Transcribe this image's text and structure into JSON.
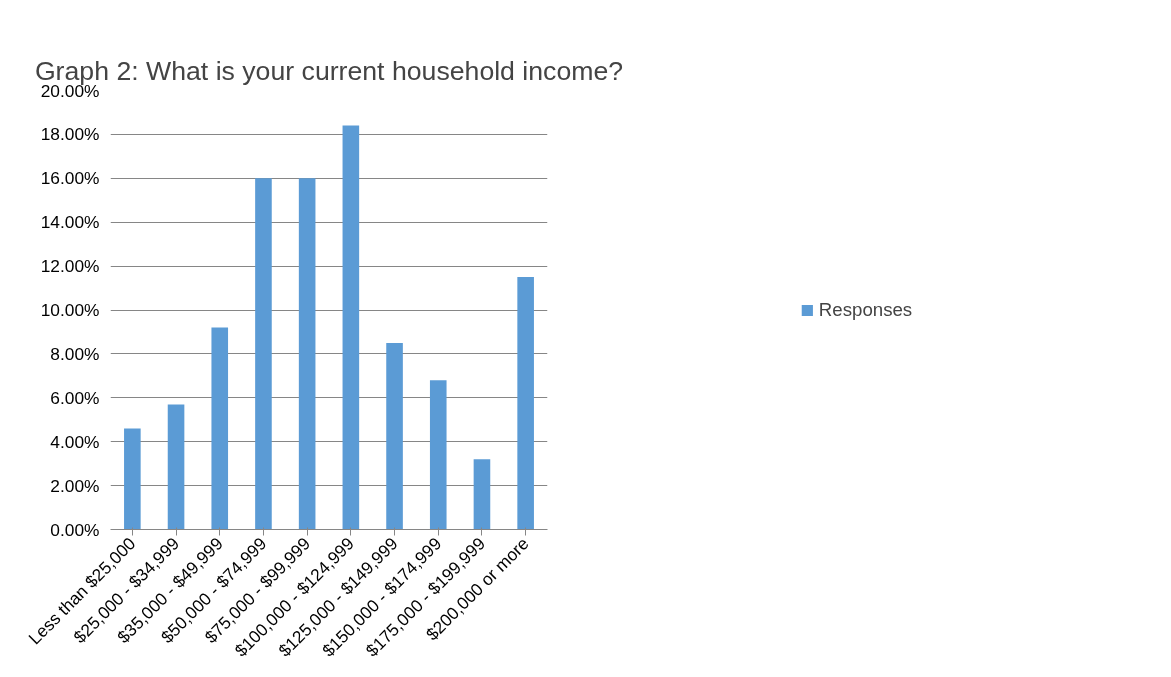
{
  "chart_data": {
    "type": "bar",
    "title": "Graph 2: What is your current household income?",
    "categories": [
      "Less than $25,000",
      "$25,000 - $34,999",
      "$35,000 - $49,999",
      "$50,000 - $74,999",
      "$75,000 - $99,999",
      "$100,000 - $124,999",
      "$125,000 - $149,999",
      "$150,000 - $174,999",
      "$175,000 - $199,999",
      "$200,000 or more"
    ],
    "series": [
      {
        "name": "Responses",
        "color": "#5b9bd5",
        "values": [
          4.6,
          5.7,
          9.2,
          16.0,
          16.0,
          18.4,
          8.5,
          6.8,
          3.2,
          11.5
        ]
      }
    ],
    "ylim": [
      0,
      20
    ],
    "yticks": [
      {
        "value": 0,
        "label": "0.00%"
      },
      {
        "value": 2,
        "label": "2.00%"
      },
      {
        "value": 4,
        "label": "4.00%"
      },
      {
        "value": 6,
        "label": "6.00%"
      },
      {
        "value": 8,
        "label": "8.00%"
      },
      {
        "value": 10,
        "label": "10.00%"
      },
      {
        "value": 12,
        "label": "12.00%"
      },
      {
        "value": 14,
        "label": "14.00%"
      },
      {
        "value": 16,
        "label": "16.00%"
      },
      {
        "value": 18,
        "label": "18.00%"
      },
      {
        "value": 20,
        "label": "20.00%"
      }
    ],
    "grid": "y",
    "legend": "right"
  }
}
